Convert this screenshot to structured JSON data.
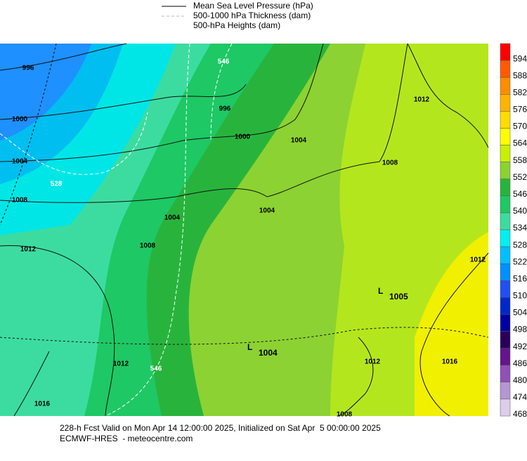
{
  "legend": {
    "items": [
      "Mean Sea Level Pressure (hPa)",
      "500-1000 hPa Thickness (dam)",
      "500-hPa Heights (dam)"
    ]
  },
  "colorbar": {
    "values": [
      594,
      588,
      582,
      576,
      570,
      564,
      558,
      552,
      546,
      540,
      534,
      528,
      522,
      516,
      510,
      504,
      498,
      492,
      486,
      480,
      474,
      468
    ],
    "colors": [
      "#ff0000",
      "#ff5a00",
      "#ff8c00",
      "#ffb400",
      "#ffdc00",
      "#ffff00",
      "#c8f000",
      "#8cd232",
      "#28b43c",
      "#1ec864",
      "#3cdca0",
      "#00f0f0",
      "#00c0ff",
      "#0090ff",
      "#2050f0",
      "#0028c8",
      "#0000a0",
      "#28005a",
      "#64148c",
      "#9050b4",
      "#b496d2",
      "#dccde8"
    ]
  },
  "map": {
    "isobar_labels": [
      996,
      1000,
      1004,
      1008,
      1012,
      996,
      1000,
      1004,
      1008,
      1012,
      1008,
      1004,
      1004,
      1012,
      1016,
      1012,
      1016,
      1012,
      1008
    ],
    "thickness_labels": [
      528,
      546,
      546
    ],
    "lows": [
      {
        "symbol": "L",
        "pressure": 1004
      },
      {
        "symbol": "L",
        "pressure": 1005
      }
    ]
  },
  "footer": {
    "line1": "228-h Fcst Valid on Mon Apr 14 12:00:00 2025, Initialized on Sat Apr  5 00:00:00 2025",
    "line2": "ECMWF-HRES  - meteocentre.com"
  }
}
